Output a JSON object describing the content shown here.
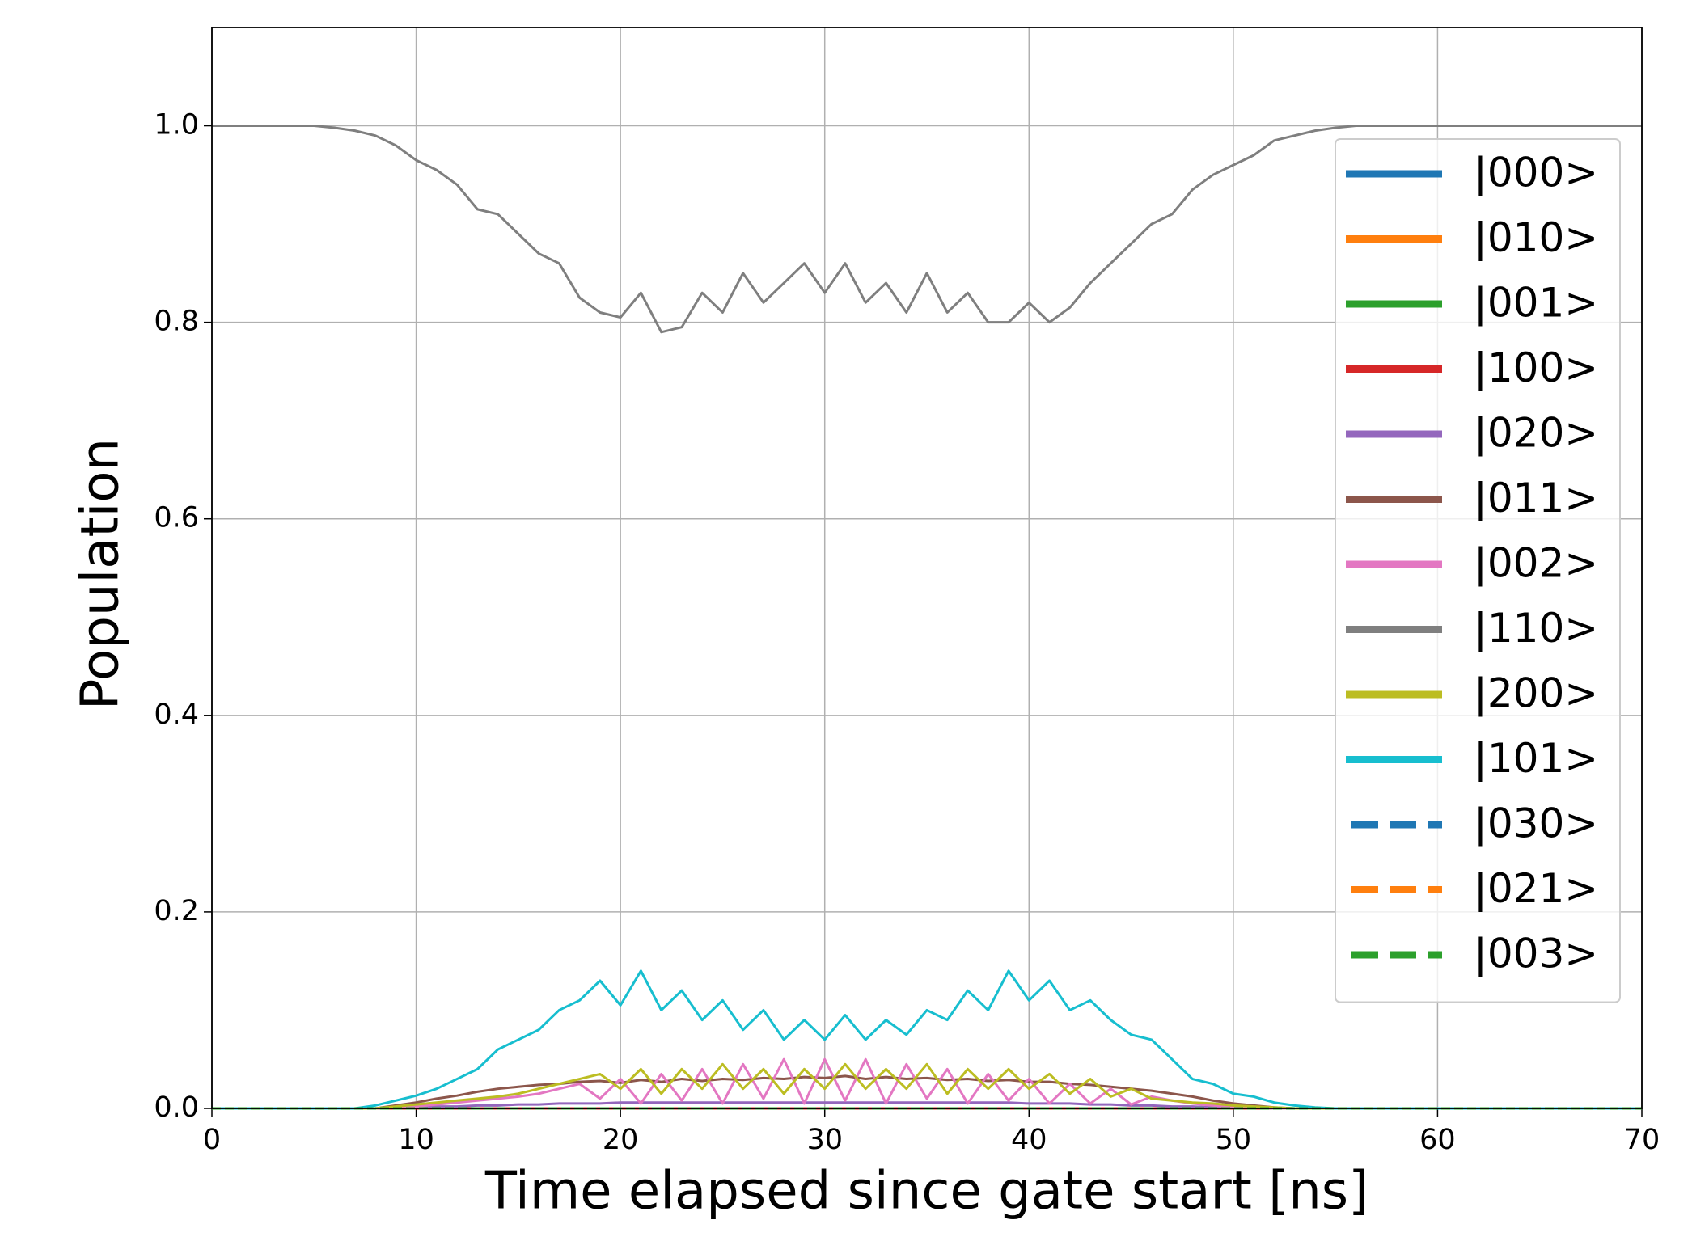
{
  "chart_data": {
    "type": "line",
    "xlabel": "Time elapsed since gate start [ns]",
    "ylabel": "Population",
    "x": [
      0,
      1,
      2,
      3,
      4,
      5,
      6,
      7,
      8,
      9,
      10,
      11,
      12,
      13,
      14,
      15,
      16,
      17,
      18,
      19,
      20,
      21,
      22,
      23,
      24,
      25,
      26,
      27,
      28,
      29,
      30,
      31,
      32,
      33,
      34,
      35,
      36,
      37,
      38,
      39,
      40,
      41,
      42,
      43,
      44,
      45,
      46,
      47,
      48,
      49,
      50,
      51,
      52,
      53,
      54,
      55,
      56,
      57,
      58,
      59,
      60,
      61,
      62,
      63,
      64,
      65,
      66,
      67,
      68,
      69,
      70
    ],
    "xlim": [
      0,
      70
    ],
    "xticks": [
      0,
      10,
      20,
      30,
      40,
      50,
      60,
      70
    ],
    "ylim": [
      0,
      1.1
    ],
    "yticks": [
      {
        "value": 0,
        "label": "0.0"
      },
      0.2,
      0.4,
      0.6,
      0.8,
      {
        "value": 1,
        "label": "1.0"
      }
    ],
    "grid": true,
    "legend": "upper right",
    "series": [
      {
        "name": "|000>",
        "color": "#1f77b4",
        "linestyle": "solid",
        "values": [
          0,
          0,
          0,
          0,
          0,
          0,
          0,
          0,
          0,
          0,
          0,
          0,
          0,
          0,
          0,
          0,
          0,
          0,
          0,
          0,
          0,
          0,
          0,
          0,
          0,
          0,
          0,
          0,
          0,
          0,
          0,
          0,
          0,
          0,
          0,
          0,
          0,
          0,
          0,
          0,
          0,
          0,
          0,
          0,
          0,
          0,
          0,
          0,
          0,
          0,
          0,
          0,
          0,
          0,
          0,
          0,
          0,
          0,
          0,
          0,
          0,
          0,
          0,
          0,
          0,
          0,
          0,
          0,
          0,
          0,
          0
        ]
      },
      {
        "name": "|010>",
        "color": "#ff7f0e",
        "linestyle": "solid",
        "values": [
          0,
          0,
          0,
          0,
          0,
          0,
          0,
          0,
          0,
          0,
          0,
          0,
          0,
          0,
          0,
          0,
          0,
          0,
          0,
          0,
          0,
          0,
          0,
          0,
          0,
          0,
          0,
          0,
          0,
          0,
          0,
          0,
          0,
          0,
          0,
          0,
          0,
          0,
          0,
          0,
          0,
          0,
          0,
          0,
          0,
          0,
          0,
          0,
          0,
          0,
          0,
          0,
          0,
          0,
          0,
          0,
          0,
          0,
          0,
          0,
          0,
          0,
          0,
          0,
          0,
          0,
          0,
          0,
          0,
          0,
          0
        ]
      },
      {
        "name": "|001>",
        "color": "#2ca02c",
        "linestyle": "solid",
        "values": [
          0,
          0,
          0,
          0,
          0,
          0,
          0,
          0,
          0,
          0,
          0,
          0,
          0,
          0,
          0,
          0,
          0,
          0,
          0,
          0,
          0,
          0,
          0,
          0,
          0,
          0,
          0,
          0,
          0,
          0,
          0,
          0,
          0,
          0,
          0,
          0,
          0,
          0,
          0,
          0,
          0,
          0,
          0,
          0,
          0,
          0,
          0,
          0,
          0,
          0,
          0,
          0,
          0,
          0,
          0,
          0,
          0,
          0,
          0,
          0,
          0,
          0,
          0,
          0,
          0,
          0,
          0,
          0,
          0,
          0,
          0
        ]
      },
      {
        "name": "|100>",
        "color": "#d62728",
        "linestyle": "solid",
        "values": [
          0,
          0,
          0,
          0,
          0,
          0,
          0,
          0,
          0,
          0,
          0,
          0,
          0,
          0,
          0,
          0,
          0,
          0,
          0,
          0,
          0,
          0,
          0,
          0,
          0,
          0,
          0,
          0,
          0,
          0,
          0,
          0,
          0,
          0,
          0,
          0,
          0,
          0,
          0,
          0,
          0,
          0,
          0,
          0,
          0,
          0,
          0,
          0,
          0,
          0,
          0,
          0,
          0,
          0,
          0,
          0,
          0,
          0,
          0,
          0,
          0,
          0,
          0,
          0,
          0,
          0,
          0,
          0,
          0,
          0,
          0
        ]
      },
      {
        "name": "|020>",
        "color": "#9467bd",
        "linestyle": "solid",
        "values": [
          0,
          0,
          0,
          0,
          0,
          0,
          0,
          0,
          0,
          0.001,
          0.001,
          0.002,
          0.002,
          0.003,
          0.003,
          0.004,
          0.004,
          0.005,
          0.005,
          0.005,
          0.006,
          0.006,
          0.006,
          0.006,
          0.006,
          0.006,
          0.006,
          0.006,
          0.006,
          0.006,
          0.006,
          0.006,
          0.006,
          0.006,
          0.006,
          0.006,
          0.006,
          0.006,
          0.006,
          0.006,
          0.005,
          0.005,
          0.005,
          0.004,
          0.004,
          0.003,
          0.003,
          0.002,
          0.002,
          0.001,
          0.001,
          0.001,
          0,
          0,
          0,
          0,
          0,
          0,
          0,
          0,
          0,
          0,
          0,
          0,
          0,
          0,
          0,
          0,
          0,
          0,
          0
        ]
      },
      {
        "name": "|011>",
        "color": "#8c564b",
        "linestyle": "solid",
        "values": [
          0,
          0,
          0,
          0,
          0,
          0,
          0,
          0,
          0,
          0.003,
          0.006,
          0.01,
          0.013,
          0.017,
          0.02,
          0.022,
          0.024,
          0.025,
          0.027,
          0.028,
          0.026,
          0.029,
          0.027,
          0.03,
          0.028,
          0.03,
          0.029,
          0.031,
          0.03,
          0.032,
          0.031,
          0.033,
          0.03,
          0.032,
          0.03,
          0.031,
          0.029,
          0.03,
          0.028,
          0.029,
          0.027,
          0.027,
          0.025,
          0.024,
          0.022,
          0.02,
          0.018,
          0.015,
          0.012,
          0.008,
          0.005,
          0.003,
          0.001,
          0,
          0,
          0,
          0,
          0,
          0,
          0,
          0,
          0,
          0,
          0,
          0,
          0,
          0,
          0,
          0,
          0,
          0
        ]
      },
      {
        "name": "|002>",
        "color": "#e377c2",
        "linestyle": "solid",
        "values": [
          0,
          0,
          0,
          0,
          0,
          0,
          0,
          0,
          0,
          0.001,
          0.002,
          0.004,
          0.006,
          0.008,
          0.01,
          0.012,
          0.015,
          0.02,
          0.025,
          0.01,
          0.03,
          0.005,
          0.035,
          0.008,
          0.04,
          0.005,
          0.045,
          0.01,
          0.05,
          0.005,
          0.05,
          0.008,
          0.05,
          0.005,
          0.045,
          0.01,
          0.04,
          0.005,
          0.035,
          0.008,
          0.03,
          0.005,
          0.025,
          0.005,
          0.02,
          0.004,
          0.012,
          0.008,
          0.005,
          0.003,
          0.002,
          0.001,
          0,
          0,
          0,
          0,
          0,
          0,
          0,
          0,
          0,
          0,
          0,
          0,
          0,
          0,
          0,
          0,
          0,
          0,
          0
        ]
      },
      {
        "name": "|110>",
        "color": "#7f7f7f",
        "linestyle": "solid",
        "values": [
          1,
          1,
          1,
          1,
          1,
          1,
          0.998,
          0.995,
          0.99,
          0.98,
          0.965,
          0.955,
          0.94,
          0.915,
          0.91,
          0.89,
          0.87,
          0.86,
          0.825,
          0.81,
          0.805,
          0.83,
          0.79,
          0.795,
          0.83,
          0.81,
          0.85,
          0.82,
          0.84,
          0.86,
          0.83,
          0.86,
          0.82,
          0.84,
          0.81,
          0.85,
          0.81,
          0.83,
          0.8,
          0.8,
          0.82,
          0.8,
          0.815,
          0.84,
          0.86,
          0.88,
          0.9,
          0.91,
          0.935,
          0.95,
          0.96,
          0.97,
          0.985,
          0.99,
          0.995,
          0.998,
          1,
          1,
          1,
          1,
          1,
          1,
          1,
          1,
          1,
          1,
          1,
          1,
          1,
          1,
          1
        ]
      },
      {
        "name": "|200>",
        "color": "#bcbd22",
        "linestyle": "solid",
        "values": [
          0,
          0,
          0,
          0,
          0,
          0,
          0,
          0,
          0,
          0.002,
          0.004,
          0.006,
          0.008,
          0.01,
          0.012,
          0.015,
          0.02,
          0.025,
          0.03,
          0.035,
          0.02,
          0.04,
          0.015,
          0.04,
          0.02,
          0.045,
          0.02,
          0.04,
          0.015,
          0.04,
          0.02,
          0.045,
          0.02,
          0.04,
          0.02,
          0.045,
          0.015,
          0.04,
          0.02,
          0.04,
          0.02,
          0.035,
          0.015,
          0.03,
          0.012,
          0.02,
          0.01,
          0.008,
          0.006,
          0.005,
          0.003,
          0.002,
          0.001,
          0,
          0,
          0,
          0,
          0,
          0,
          0,
          0,
          0,
          0,
          0,
          0,
          0,
          0,
          0,
          0,
          0,
          0
        ]
      },
      {
        "name": "|101>",
        "color": "#17becf",
        "linestyle": "solid",
        "values": [
          0,
          0,
          0,
          0,
          0,
          0,
          0,
          0,
          0.003,
          0.008,
          0.013,
          0.02,
          0.03,
          0.04,
          0.06,
          0.07,
          0.08,
          0.1,
          0.11,
          0.13,
          0.105,
          0.14,
          0.1,
          0.12,
          0.09,
          0.11,
          0.08,
          0.1,
          0.07,
          0.09,
          0.07,
          0.095,
          0.07,
          0.09,
          0.075,
          0.1,
          0.09,
          0.12,
          0.1,
          0.14,
          0.11,
          0.13,
          0.1,
          0.11,
          0.09,
          0.075,
          0.07,
          0.05,
          0.03,
          0.025,
          0.015,
          0.012,
          0.006,
          0.003,
          0.001,
          0,
          0,
          0,
          0,
          0,
          0,
          0,
          0,
          0,
          0,
          0,
          0,
          0,
          0,
          0,
          0
        ]
      },
      {
        "name": "|030>",
        "color": "#1f77b4",
        "linestyle": "dashed",
        "values": [
          0,
          0,
          0,
          0,
          0,
          0,
          0,
          0,
          0,
          0,
          0,
          0,
          0,
          0,
          0,
          0,
          0,
          0,
          0,
          0,
          0,
          0,
          0,
          0,
          0,
          0,
          0,
          0,
          0,
          0,
          0,
          0,
          0,
          0,
          0,
          0,
          0,
          0,
          0,
          0,
          0,
          0,
          0,
          0,
          0,
          0,
          0,
          0,
          0,
          0,
          0,
          0,
          0,
          0,
          0,
          0,
          0,
          0,
          0,
          0,
          0,
          0,
          0,
          0,
          0,
          0,
          0,
          0,
          0,
          0,
          0
        ]
      },
      {
        "name": "|021>",
        "color": "#ff7f0e",
        "linestyle": "dashed",
        "values": [
          0,
          0,
          0,
          0,
          0,
          0,
          0,
          0,
          0,
          0,
          0,
          0,
          0,
          0,
          0,
          0,
          0,
          0,
          0,
          0,
          0,
          0,
          0,
          0,
          0,
          0,
          0,
          0,
          0,
          0,
          0,
          0,
          0,
          0,
          0,
          0,
          0,
          0,
          0,
          0,
          0,
          0,
          0,
          0,
          0,
          0,
          0,
          0,
          0,
          0,
          0,
          0,
          0,
          0,
          0,
          0,
          0,
          0,
          0,
          0,
          0,
          0,
          0,
          0,
          0,
          0,
          0,
          0,
          0,
          0,
          0
        ]
      },
      {
        "name": "|003>",
        "color": "#2ca02c",
        "linestyle": "dashed",
        "values": [
          0,
          0,
          0,
          0,
          0,
          0,
          0,
          0,
          0,
          0,
          0,
          0,
          0,
          0,
          0,
          0,
          0,
          0,
          0,
          0,
          0,
          0,
          0,
          0,
          0,
          0,
          0,
          0,
          0,
          0,
          0,
          0,
          0,
          0,
          0,
          0,
          0,
          0,
          0,
          0,
          0,
          0,
          0,
          0,
          0,
          0,
          0,
          0,
          0,
          0,
          0,
          0,
          0,
          0,
          0,
          0,
          0,
          0,
          0,
          0,
          0,
          0,
          0,
          0,
          0,
          0,
          0,
          0,
          0,
          0,
          0
        ]
      }
    ]
  }
}
